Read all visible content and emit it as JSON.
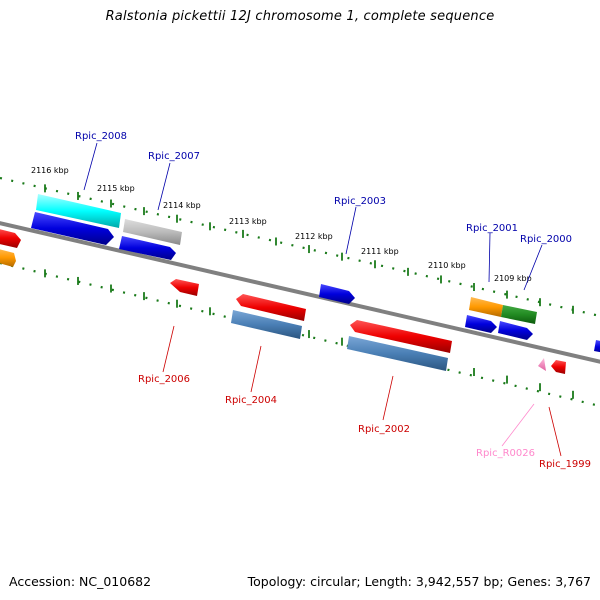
{
  "title": "Ralstonia pickettii 12J chromosome 1, complete sequence",
  "footer": {
    "accession": "Accession: NC_010682",
    "topology": "Topology: circular; Length: 3,942,557 bp; Genes: 3,767"
  },
  "scale_labels": [
    "2116 kbp",
    "2115 kbp",
    "2114 kbp",
    "2113 kbp",
    "2112 kbp",
    "2111 kbp",
    "2110 kbp",
    "2109 kbp"
  ],
  "genes_top": [
    "Rpic_2008",
    "Rpic_2007",
    "Rpic_2003",
    "Rpic_2001",
    "Rpic_2000"
  ],
  "genes_bottom": [
    "Rpic_2006",
    "Rpic_2004",
    "Rpic_2002",
    "Rpic_R0026",
    "Rpic_1999"
  ],
  "colors": {
    "blue": "#0000dd",
    "red": "#ee0000",
    "steel": "#4a7fb5",
    "cyan": "#00e5e5",
    "gray": "#b4b4b4",
    "orange": "#ff9900",
    "green": "#1f8a1f",
    "pink": "#ff88cc",
    "backbone": "#808080",
    "tick": "#1a7a1a"
  }
}
